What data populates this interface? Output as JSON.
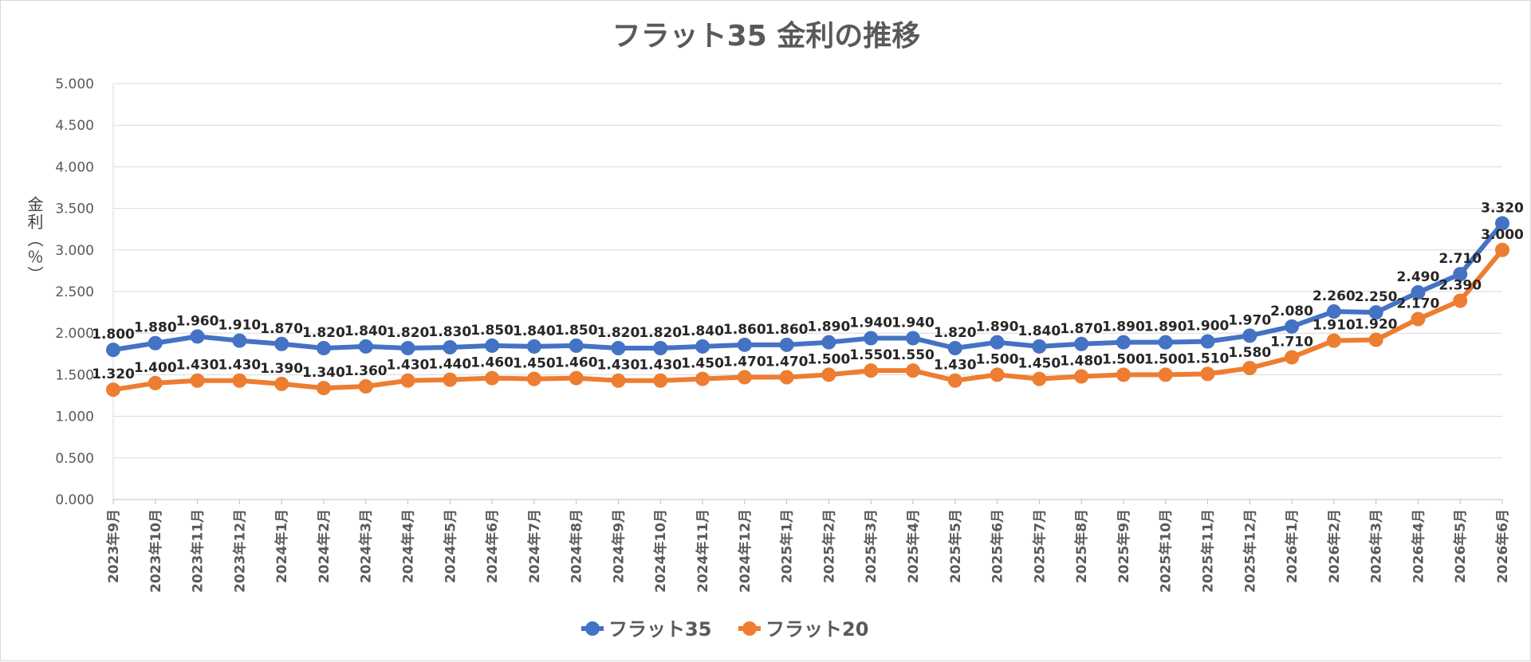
{
  "chart_data": {
    "type": "line",
    "title": "フラット35 金利の推移",
    "ylabel": "金利（％）",
    "ylim": [
      0,
      5
    ],
    "yticks": [
      "0.000",
      "0.500",
      "1.000",
      "1.500",
      "2.000",
      "2.500",
      "3.000",
      "3.500",
      "4.000",
      "4.500",
      "5.000"
    ],
    "grid": true,
    "legend_position": "bottom",
    "categories": [
      "2023年9月",
      "2023年10月",
      "2023年11月",
      "2023年12月",
      "2024年1月",
      "2024年2月",
      "2024年3月",
      "2024年4月",
      "2024年5月",
      "2024年6月",
      "2024年7月",
      "2024年8月",
      "2024年9月",
      "2024年10月",
      "2024年11月",
      "2024年12月",
      "2025年1月",
      "2025年2月",
      "2025年3月",
      "2025年4月",
      "2025年5月",
      "2025年6月",
      "2025年7月",
      "2025年8月",
      "2025年9月",
      "2025年10月",
      "2025年11月",
      "2025年12月",
      "2026年1月",
      "2026年2月",
      "2026年3月",
      "2026年4月",
      "2026年5月",
      "2026年6月"
    ],
    "series": [
      {
        "name": "フラット35",
        "color": "#4472C4",
        "values": [
          1.8,
          1.88,
          1.96,
          1.91,
          1.87,
          1.82,
          1.84,
          1.82,
          1.83,
          1.85,
          1.84,
          1.85,
          1.82,
          1.82,
          1.84,
          1.86,
          1.86,
          1.89,
          1.94,
          1.94,
          1.82,
          1.89,
          1.84,
          1.87,
          1.89,
          1.89,
          1.9,
          1.97,
          2.08,
          2.26,
          2.25,
          2.49,
          2.71,
          3.32
        ],
        "labels": [
          "1.800",
          "1.880",
          "1.960",
          "1.910",
          "1.870",
          "1.820",
          "1.840",
          "1.820",
          "1.830",
          "1.850",
          "1.840",
          "1.850",
          "1.820",
          "1.820",
          "1.840",
          "1.860",
          "1.860",
          "1.890",
          "1.940",
          "1.940",
          "1.820",
          "1.890",
          "1.840",
          "1.870",
          "1.890",
          "1.890",
          "1.900",
          "1.970",
          "2.080",
          "2.260",
          "2.250",
          "2.490",
          "2.710",
          "3.320"
        ]
      },
      {
        "name": "フラット20",
        "color": "#ED7D31",
        "values": [
          1.32,
          1.4,
          1.43,
          1.43,
          1.39,
          1.34,
          1.36,
          1.43,
          1.44,
          1.46,
          1.45,
          1.46,
          1.43,
          1.43,
          1.45,
          1.47,
          1.47,
          1.5,
          1.55,
          1.55,
          1.43,
          1.5,
          1.45,
          1.48,
          1.5,
          1.5,
          1.51,
          1.58,
          1.71,
          1.91,
          1.92,
          2.17,
          2.39,
          3.0
        ],
        "labels": [
          "1.320",
          "1.400",
          "1.430",
          "1.430",
          "1.390",
          "1.340",
          "1.360",
          "1.430",
          "1.440",
          "1.460",
          "1.450",
          "1.460",
          "1.430",
          "1.430",
          "1.450",
          "1.470",
          "1.470",
          "1.500",
          "1.550",
          "1.550",
          "1.430",
          "1.500",
          "1.450",
          "1.480",
          "1.500",
          "1.500",
          "1.510",
          "1.580",
          "1.710",
          "1.910",
          "1.920",
          "2.170",
          "2.390",
          "3.000"
        ]
      }
    ]
  }
}
